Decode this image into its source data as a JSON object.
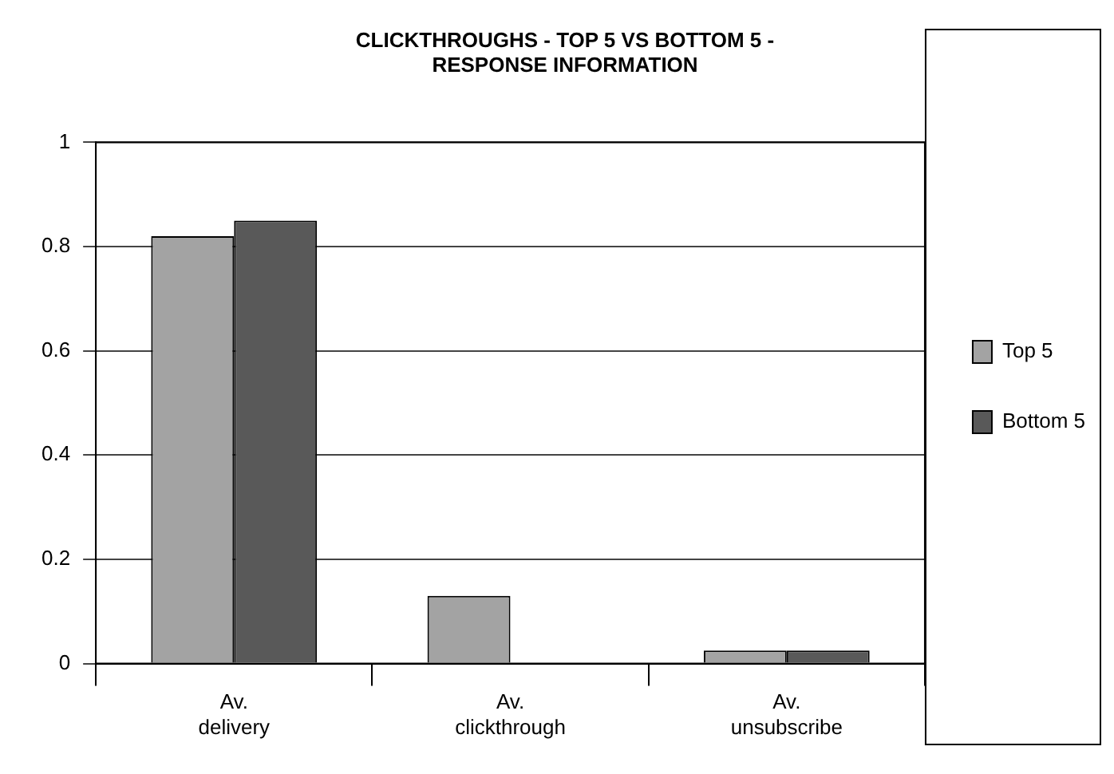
{
  "chart_data": {
    "type": "bar",
    "title": [
      "CLICKTHROUGHS - TOP 5 VS BOTTOM 5 -",
      "RESPONSE INFORMATION"
    ],
    "categories": [
      [
        "Av.",
        "delivery"
      ],
      [
        "Av.",
        "clickthrough"
      ],
      [
        "Av.",
        "unsubscribe"
      ]
    ],
    "series": [
      {
        "name": "Top 5",
        "color": "#a3a3a3",
        "values": [
          0.82,
          0.13,
          0.025
        ]
      },
      {
        "name": "Bottom 5",
        "color": "#595959",
        "values": [
          0.85,
          0,
          0.025
        ]
      }
    ],
    "ylim": [
      0,
      1
    ],
    "yticks": [
      0,
      0.2,
      0.4,
      0.6,
      0.8,
      1
    ],
    "grid": "y",
    "legend": "right"
  }
}
